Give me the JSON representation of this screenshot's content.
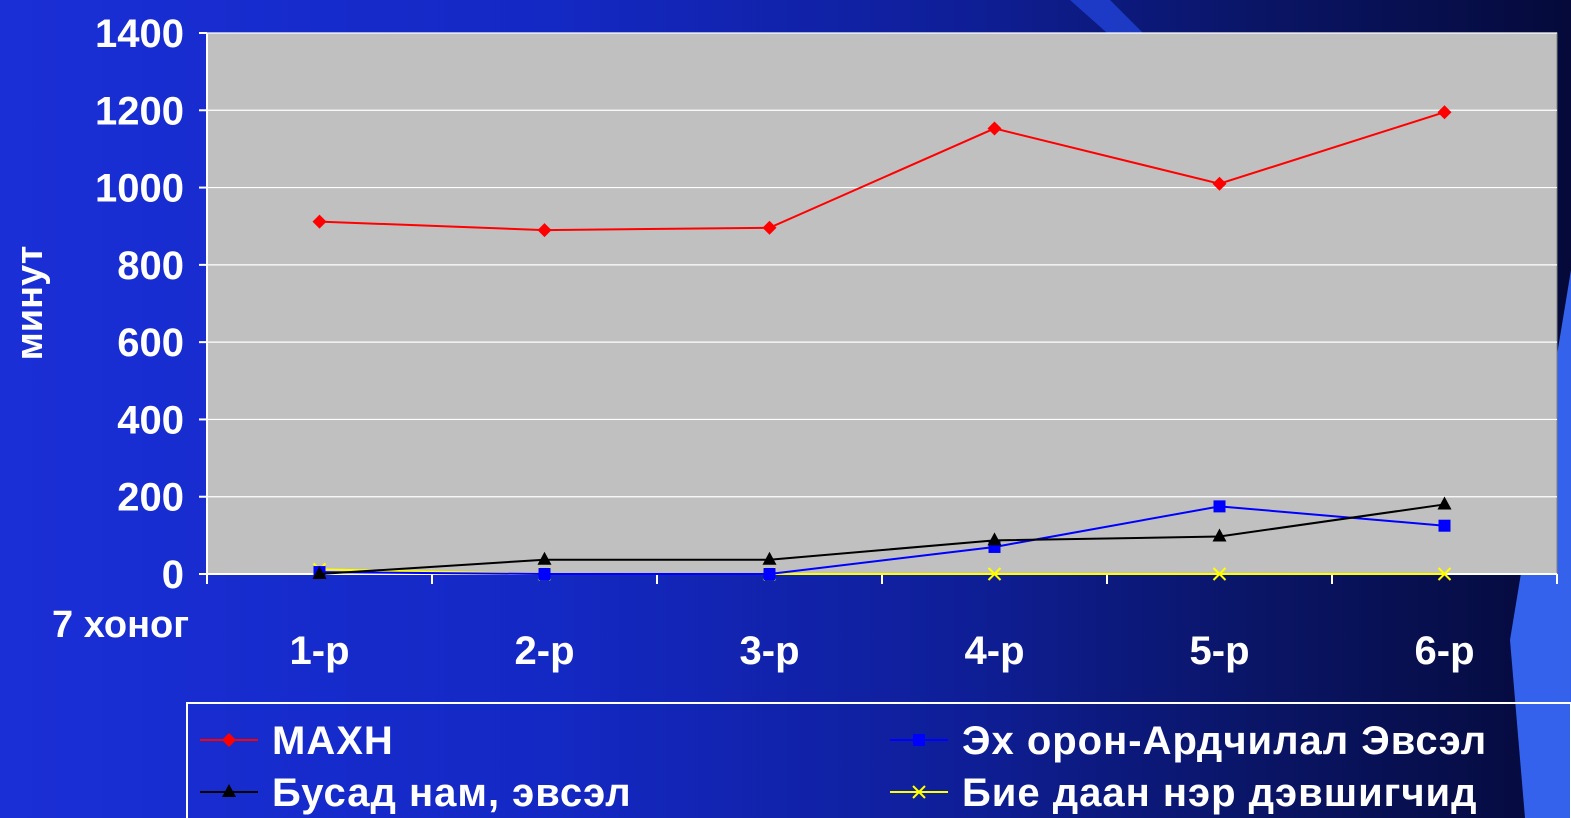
{
  "chart_data": {
    "type": "line",
    "x_axis_title": "7 хоног",
    "y_axis_title": "минут",
    "categories": [
      "1-р",
      "2-р",
      "3-р",
      "4-р",
      "5-р",
      "6-р"
    ],
    "ylim": [
      0,
      1400
    ],
    "yticks": [
      0,
      200,
      400,
      600,
      800,
      1000,
      1200,
      1400
    ],
    "grid": true,
    "legend_position": "bottom",
    "plot_background": "#c0c0c0",
    "series": [
      {
        "name": "МАХН",
        "color": "#ff0000",
        "marker": "diamond",
        "values": [
          912,
          890,
          896,
          1153,
          1010,
          1195
        ]
      },
      {
        "name": "Эх орон-Ардчилал Эвсэл",
        "color": "#0000ff",
        "marker": "square",
        "values": [
          5,
          0,
          0,
          70,
          175,
          125
        ]
      },
      {
        "name": "Бусад нам, эвсэл",
        "color": "#000000",
        "marker": "triangle",
        "values": [
          0,
          37,
          37,
          87,
          97,
          180
        ]
      },
      {
        "name": "Бие даан нэр дэвшигчид",
        "color": "#ffff00",
        "marker": "x",
        "values": [
          12,
          0,
          0,
          0,
          0,
          0
        ]
      }
    ]
  }
}
